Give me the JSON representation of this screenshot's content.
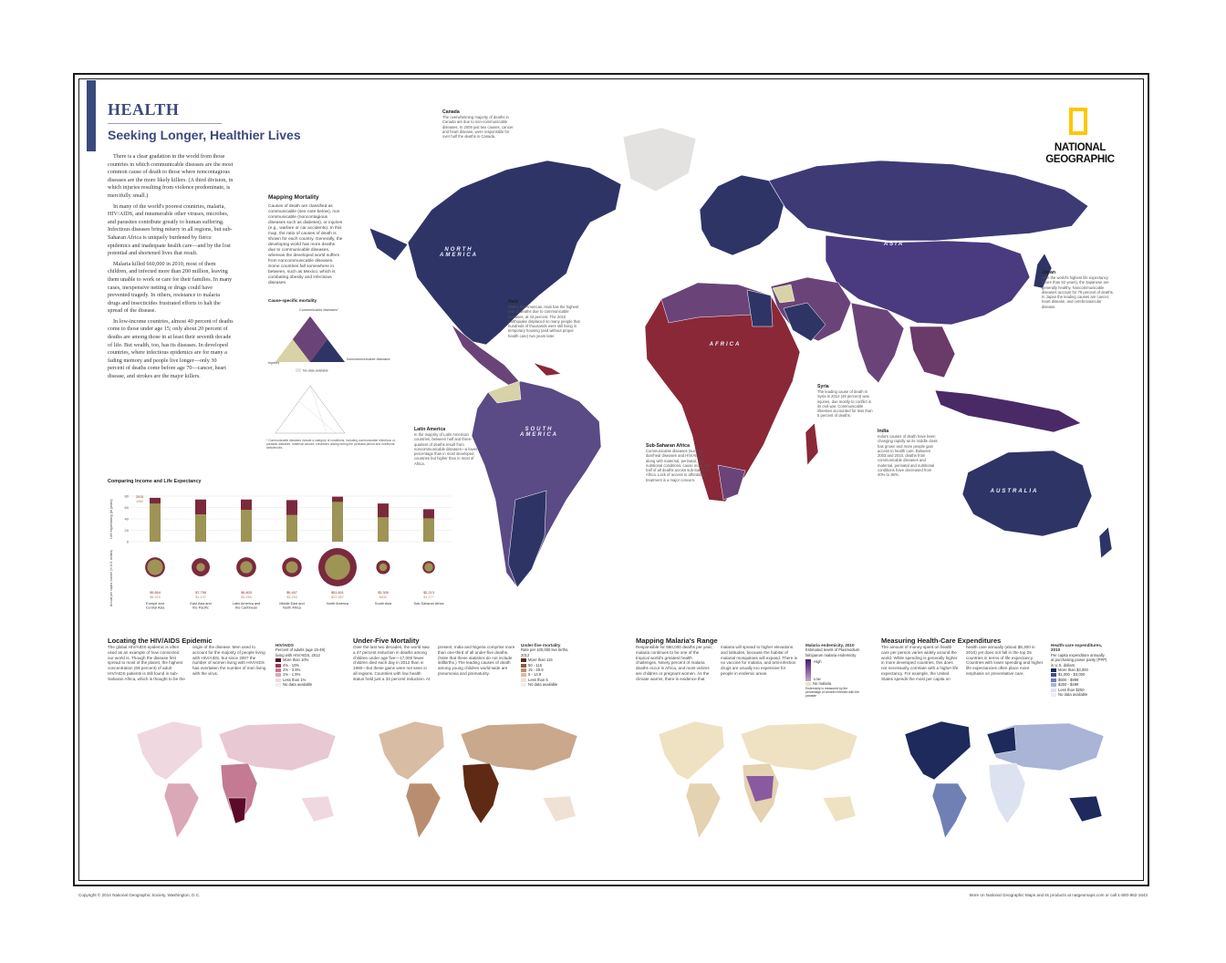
{
  "header": {
    "title": "HEALTH",
    "subtitle": "Seeking Longer, Healthier Lives"
  },
  "intro": {
    "p1": "There is a clear gradation in the world from those countries in which communicable diseases are the most common cause of death to those where noncontagious diseases are the more likely killers. (A third division, in which injuries resulting from violence predominate, is mercifully small.)",
    "p2": "In many of the world's poorest countries, malaria, HIV/AIDS, and innumerable other viruses, microbes, and parasites contribute greatly to human suffering. Infectious diseases bring misery in all regions, but sub-Saharan Africa is uniquely burdened by fierce epidemics and inadequate health care—and by the lost potential and shortened lives that result.",
    "p3": "Malaria killed 660,000 in 2010, most of them children, and infected more than 200 million, leaving them unable to work or care for their families. In many cases, inexpensive netting or drugs could have prevented tragedy. In others, resistance to malaria drugs and insecticides frustrated efforts to halt the spread of the disease.",
    "p4": "In low-income countries, almost 40 percent of deaths come to those under age 15; only about 20 percent of deaths are among those in at least their seventh decade of life. But wealth, too, has its diseases. In developed countries, where infectious epidemics are for many a fading memory and people live longer—only 30 percent of deaths come before age 70—cancer, heart disease, and strokes are the major killers."
  },
  "logo": {
    "line1": "NATIONAL",
    "line2": "GEOGRAPHIC",
    "color": "#ffc700"
  },
  "mapping_mortality": {
    "title": "Mapping Mortality",
    "text": "Causes of death are classified as communicable (see note below), non communicable (noncontagious diseases such as diabetes), or injuries (e.g., warfare or car accidents). In this map, the ratio of causes of death is shown for each country. Generally, the developing world has more deaths due to communicable diseases, whereas the developed world suffers from noncommunicable diseases. Some countries fall somewhere in between, such as Mexico, which is combating obesity and infectious diseases.",
    "triangle_title": "Cause-specific mortality",
    "label_communicable": "Communicable diseases*",
    "label_noncommunicable": "Noncommunicable diseases",
    "label_injuries": "Injuries",
    "label_no_data": "No data available",
    "footnote": "* Communicable diseases include a category of conditions, including communicable infectious or parasitic diseases, maternal causes, conditions arising during the perinatal period and nutritional deficiencies."
  },
  "map_labels": {
    "north_america": "NORTH AMERICA",
    "south_america": "SOUTH AMERICA",
    "africa": "AFRICA",
    "asia": "ASIA",
    "australia": "AUSTRALIA"
  },
  "callouts": {
    "canada": {
      "title": "Canada",
      "text": "The overwhelming majority of deaths in Canada are due to non-communicable diseases. In 2009 just two causes, cancer and heart disease, were responsible for over half the deaths in Canada."
    },
    "haiti": {
      "title": "Haiti",
      "text": "Within the Americas, Haiti has the highest rate of deaths due to communicable diseases, at 43 percent. The 2010 earthquake displaced so many people that hundreds of thousands were still living in temporary housing (and without proper health care) two years later."
    },
    "japan": {
      "title": "Japan",
      "text": "With the world's highest life expectancy (more than 82 years), the Japanese are generally healthy. Noncommunicable diseases account for 79 percent of deaths. In Japan the leading causes are cancer, heart disease, and cerebrovascular disease."
    },
    "syria": {
      "title": "Syria",
      "text": "The leading cause of death in Syria in 2012 (48 percent) was injuries, due mostly to conflict in its civil war. Communicable illnesses accounted for less than 5 percent of deaths."
    },
    "india": {
      "title": "India",
      "text": "India's causes of death have been changing rapidly as its middle class has grown and more people gain access to health care. Between 2003 and 2010, deaths from communicable diseases and maternal, perinatal and nutritional conditions have decreased from 40% to 36%."
    },
    "latin_america": {
      "title": "Latin America",
      "text": "In the majority of Latin American countries, between half and three-quarters of deaths result from noncommunicable diseases—a lower percentage than in most developed countries but higher than in most of Africa."
    },
    "sub_saharan": {
      "title": "Sub-Saharan Africa",
      "text": "Communicable diseases (such as diarrheal diseases and HIV/AIDS), along with maternal, perinatal, and nutritional conditions, cause more than half of all deaths across sub-Saharan Africa. Lack of access to affordable treatment is a major concern."
    }
  },
  "income_chart": {
    "title": "Comparing Income and Life Expectancy",
    "y_label": "Life expectancy (in years)",
    "circle_label": "Annual per capita income (in U.S. dollars)",
    "year_2015": "2015",
    "year_1960": "1960"
  },
  "chart_data": {
    "type": "bar",
    "title": "Comparing Income and Life Expectancy",
    "ylabel": "Life expectancy (in years)",
    "ylim": [
      0,
      80
    ],
    "yticks": [
      "80",
      "60",
      "40",
      "20",
      "0"
    ],
    "categories": [
      "Europe and Central Asia",
      "East Asia and the Pacific",
      "Latin America and the Caribbean",
      "Middle East and North Africa",
      "North America",
      "South Asia",
      "Sub-Saharan Africa"
    ],
    "series": [
      {
        "name": "2015",
        "values": [
          77,
          74,
          74,
          73,
          79,
          67,
          57
        ],
        "color": "#7a2a3c"
      },
      {
        "name": "1960",
        "values": [
          67,
          48,
          56,
          47,
          70,
          43,
          41
        ],
        "color": "#9e9456"
      }
    ],
    "income_2015": [
      "$9,854",
      "$7,758",
      "$9,803",
      "$9,457",
      "$51,601",
      "$3,305",
      "$2,213"
    ],
    "income_1960": [
      "$6,915",
      "$1,137",
      "$3,459",
      "$3,253",
      "$22,367",
      "$832",
      "$1,177"
    ],
    "income_2015_values": [
      9854,
      7758,
      9803,
      9457,
      51601,
      3305,
      2213
    ],
    "income_1960_values": [
      6915,
      1137,
      3459,
      3253,
      22367,
      832,
      1177
    ]
  },
  "sections": {
    "hiv": {
      "title": "Locating the HIV/AIDS Epidemic",
      "text": "The global HIV/AIDS epidemic is often used as an example of how connected our world is. Though the disease first spread to most of the planet, the highest concentration (69 percent) of adult HIV/AIDS patients is still found in sub-Saharan Africa, which is thought to be the origin of the disease. Men used to account for the majority of people living with HIV/AIDS, but since 2007 the number of women living with HIV/AIDS has overtaken the number of men living with the virus.",
      "legend_title": "HIV/AIDS",
      "legend_sub": "Percent of adults (age 15-49) living with HIV/AIDS, 2012",
      "legend_items": [
        "More than 10%",
        "4% - 10%",
        "2% - 3.9%",
        "1% - 1.9%",
        "Less than 1%",
        "No data available"
      ],
      "legend_colors": [
        "#5c0a2a",
        "#9b3a5a",
        "#c47a92",
        "#dba8b8",
        "#f0d8e0",
        "#eeeeee"
      ]
    },
    "under5": {
      "title": "Under-Five Mortality",
      "text": "Over the last two decades, the world saw a 47 percent reduction in deaths among children under age five—17,000 fewer children died each day in 2012 than in 1990—but these gains were not seen in all regions. Countries with low health status held just a 33 percent reduction. At present, India and Nigeria comprise more than one-third of all under-five deaths. (Note that these statistics do not include stillbirths.) The leading causes of death among young children world-wide are pneumonia and prematurity.",
      "legend_title": "Under-five mortality",
      "legend_sub": "Rate per 100,000 live births, 2012",
      "legend_items": [
        "More than 115",
        "50 - 115",
        "15 - 49.9",
        "5 - 14.9",
        "Less than 5",
        "No data available"
      ],
      "legend_colors": [
        "#5e2a14",
        "#8e5a3c",
        "#b98e70",
        "#d8bca4",
        "#efe1d4",
        "#eeeeee"
      ]
    },
    "malaria": {
      "title": "Mapping Malaria's Range",
      "text": "Responsible for 660,000 deaths per year, malaria continues to be one of the tropical world's greatest health challenges. Ninety percent of malaria deaths occur in Africa, and most victims are children or pregnant women. As the climate warms, there is evidence that malaria will spread to higher elevations and latitudes, because the habitat of malarial mosquitoes will expand. There is no vaccine for malaria, and anti-infection drugs are usually too expensive for people in endemic areas.",
      "legend_title": "Malaria endemicity, 2010",
      "legend_sub": "Estimated levels of Plasmodium falciparum malaria endemicity",
      "legend_high": "High",
      "legend_low": "Low",
      "legend_none": "No malaria",
      "legend_note": "Endemicity is measured by the percentage of children infected with the parasite",
      "legend_colors": [
        "#4a1a6a",
        "#8a5aa0",
        "#c4a8cc",
        "#efe2c2"
      ]
    },
    "spending": {
      "title": "Measuring Health-Care Expenditures",
      "text": "The amount of money spent on health care per person varies widely around the world. While spending is generally higher in more developed countries, this does not necessarily correlate with a higher life expectancy. For example, the United States spends the most per capita on health care annually (about $8,300 in 2010) yet does not fall in the top 25 countries in terms of life expectancy. Countries with lower spending and higher life expectancies often place more emphasis on preventative care.",
      "legend_title": "Health-care expenditures, 2010",
      "legend_sub": "Per capita expenditure annually at purchasing power parity (PPP) in U.S. dollars",
      "legend_items": [
        "More than $3,000",
        "$1,000 - $3,000",
        "$500 - $999",
        "$250 - $499",
        "Less than $250",
        "No data available"
      ],
      "legend_colors": [
        "#1e2a5c",
        "#3e4f8a",
        "#7080b4",
        "#a9b4d6",
        "#dde2f0",
        "#eeeeee"
      ]
    }
  },
  "main_map_colors": {
    "noncommunicable": "#2e3566",
    "mixed": "#6a4478",
    "communicable": "#8a2838",
    "injuries": "#d8d2a8",
    "no_data": "#e4e2e0"
  },
  "footer": {
    "copyright": "Copyright © 2014 National Geographic Society, Washington, D.C.",
    "more": "More on National Geographic Maps and its products at natgeomaps.com or call 1-800-962-1643"
  }
}
